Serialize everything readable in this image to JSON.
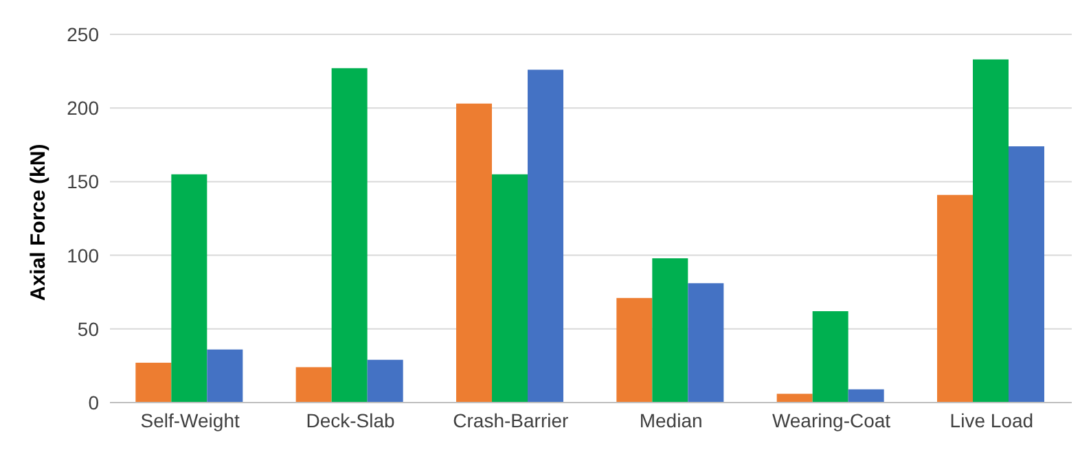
{
  "chart_data": {
    "type": "bar",
    "ylabel": "Axial Force (kN)",
    "categories": [
      "Self-Weight",
      "Deck-Slab",
      "Crash-Barrier",
      "Median",
      "Wearing-Coat",
      "Live Load"
    ],
    "series": [
      {
        "color": "#ed7d31",
        "values": [
          27,
          24,
          203,
          71,
          6,
          141
        ]
      },
      {
        "color": "#00b050",
        "values": [
          155,
          227,
          155,
          98,
          62,
          233
        ]
      },
      {
        "color": "#4472c4",
        "values": [
          36,
          29,
          226,
          81,
          9,
          174
        ]
      }
    ],
    "ylim": [
      0,
      250
    ],
    "yticks": [
      0,
      50,
      100,
      150,
      200,
      250
    ],
    "grid": "y"
  }
}
